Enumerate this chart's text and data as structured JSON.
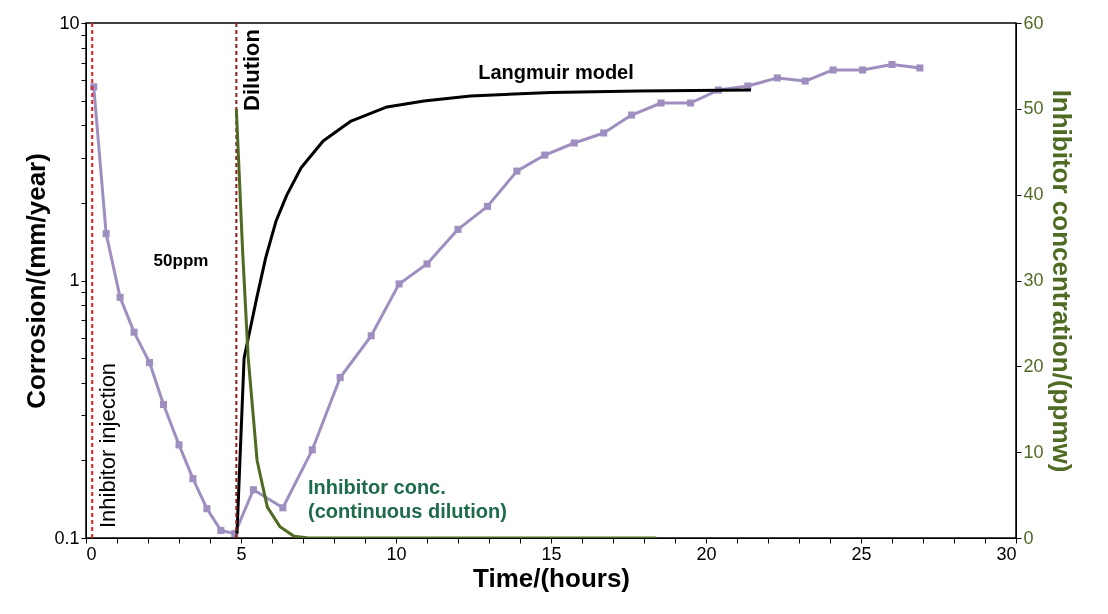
{
  "chart_data": {
    "type": "line",
    "xlabel": "Time/(hours)",
    "ylabel": "Corrosion/(mm/year)",
    "y2label": "Inhibitor concentration/(ppmw)",
    "xlim": [
      0,
      30
    ],
    "xticks": [
      0,
      {
        "value": 1,
        "label": null
      },
      {
        "value": 2,
        "label": null
      },
      {
        "value": 3,
        "label": null
      },
      {
        "value": 4,
        "label": null
      },
      5,
      {
        "value": 6,
        "label": null
      },
      {
        "value": 7,
        "label": null
      },
      {
        "value": 8,
        "label": null
      },
      {
        "value": 9,
        "label": null
      },
      10,
      {
        "value": 11,
        "label": null
      },
      {
        "value": 12,
        "label": null
      },
      {
        "value": 13,
        "label": null
      },
      {
        "value": 14,
        "label": null
      },
      15,
      {
        "value": 16,
        "label": null
      },
      {
        "value": 17,
        "label": null
      },
      {
        "value": 18,
        "label": null
      },
      {
        "value": 19,
        "label": null
      },
      20,
      {
        "value": 21,
        "label": null
      },
      {
        "value": 22,
        "label": null
      },
      {
        "value": 23,
        "label": null
      },
      {
        "value": 24,
        "label": null
      },
      25,
      {
        "value": 26,
        "label": null
      },
      {
        "value": 27,
        "label": null
      },
      {
        "value": 28,
        "label": null
      },
      {
        "value": 29,
        "label": null
      },
      30
    ],
    "ylim": [
      0.1,
      10
    ],
    "yticks": [
      0.1,
      {
        "value": 0.2,
        "label": null
      },
      {
        "value": 0.3,
        "label": null
      },
      {
        "value": 0.4,
        "label": null
      },
      {
        "value": 0.5,
        "label": null
      },
      {
        "value": 0.6,
        "label": null
      },
      {
        "value": 0.7,
        "label": null
      },
      {
        "value": 0.8,
        "label": null
      },
      {
        "value": 0.9,
        "label": null
      },
      1,
      {
        "value": 2,
        "label": null
      },
      {
        "value": 3,
        "label": null
      },
      {
        "value": 4,
        "label": null
      },
      {
        "value": 5,
        "label": null
      },
      {
        "value": 6,
        "label": null
      },
      {
        "value": 7,
        "label": null
      },
      {
        "value": 8,
        "label": null
      },
      {
        "value": 9,
        "label": null
      },
      10
    ],
    "y2lim": [
      0,
      60
    ],
    "y2ticks": [
      0,
      10,
      20,
      30,
      40,
      50,
      60
    ],
    "log": "y",
    "grid": false,
    "series": [
      {
        "color": "#9f8fc0",
        "marker": "square",
        "x": [
          0.25,
          0.65,
          1.1,
          1.55,
          2.05,
          2.5,
          3.0,
          3.45,
          3.9,
          4.35,
          4.8,
          5.4,
          6.35,
          7.3,
          8.2,
          9.2,
          10.1,
          11.0,
          12.0,
          12.95,
          13.9,
          14.8,
          15.75,
          16.7,
          17.6,
          18.55,
          19.5,
          20.4,
          21.35,
          22.3,
          23.2,
          24.1,
          25.05,
          26.0,
          26.9
        ],
        "values": [
          5.65,
          1.52,
          0.86,
          0.63,
          0.48,
          0.33,
          0.23,
          0.17,
          0.13,
          0.107,
          0.104,
          0.154,
          0.131,
          0.22,
          0.42,
          0.61,
          0.97,
          1.16,
          1.58,
          1.94,
          2.66,
          3.07,
          3.42,
          3.74,
          4.39,
          4.89,
          4.89,
          5.49,
          5.69,
          6.12,
          5.95,
          6.57,
          6.57,
          6.9,
          6.69
        ]
      },
      {
        "name": "Langmuir model",
        "color": "#000000",
        "marker": "none",
        "x": [
          4.87,
          5.1,
          5.52,
          5.8,
          6.13,
          6.48,
          6.94,
          7.65,
          8.55,
          9.71,
          10.9,
          12.4,
          15.0,
          17.8,
          21.45
        ],
        "values": [
          0.104,
          0.5,
          0.87,
          1.23,
          1.7,
          2.15,
          2.74,
          3.48,
          4.16,
          4.72,
          4.98,
          5.21,
          5.37,
          5.45,
          5.49
        ]
      },
      {
        "name": "Inhibitor conc.\n(continuous dilution)",
        "color": "#4f6a23",
        "marker": "none",
        "axis": "y2",
        "x": [
          4.85,
          5.05,
          5.23,
          5.52,
          5.85,
          6.26,
          6.71,
          7.18,
          18.4
        ],
        "values": [
          50,
          33.6,
          21.1,
          9.0,
          3.6,
          1.3,
          0.2,
          0,
          0
        ]
      }
    ],
    "ref_lines": [
      {
        "axis": "x",
        "value": 0.2,
        "label": "Inhibitor injection",
        "color": "#e02020",
        "line_style": "dashed"
      },
      {
        "axis": "x",
        "value": 4.85,
        "label": "Dilution",
        "color": "#8b1a1a",
        "line_style": "dashed"
      }
    ],
    "annotations": [
      "50ppm"
    ]
  }
}
